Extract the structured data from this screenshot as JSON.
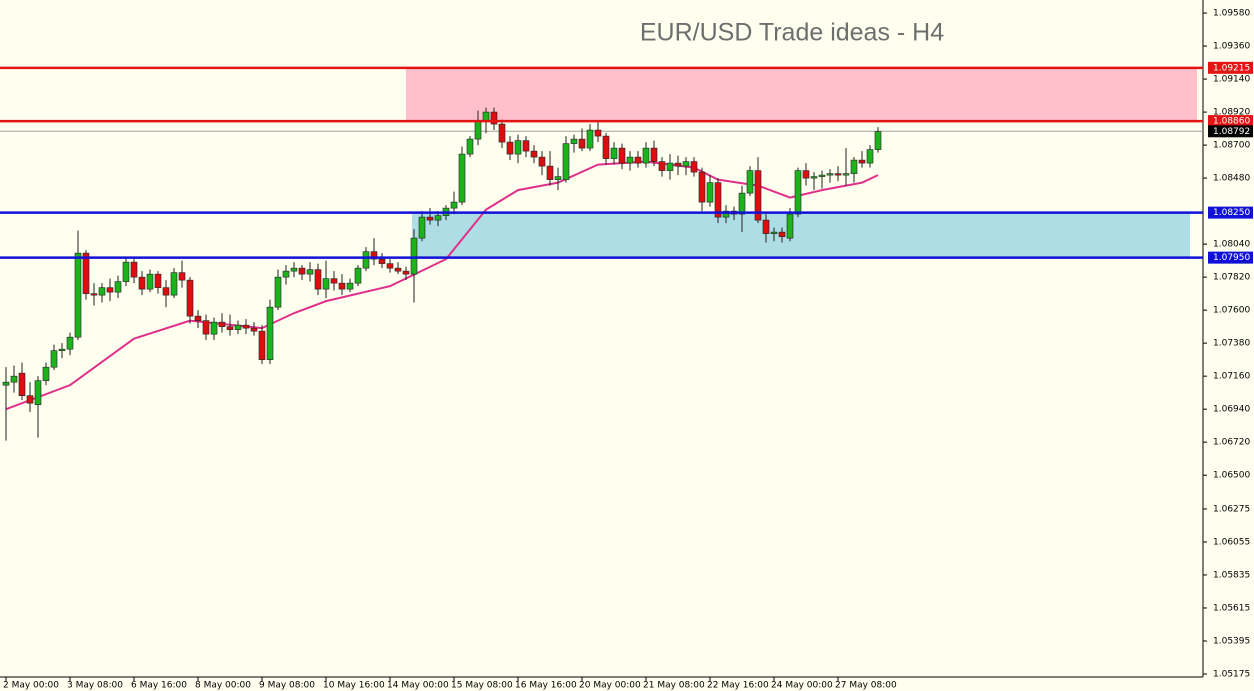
{
  "chart_data": {
    "type": "candlestick",
    "title": "EUR/USD Trade ideas - H4",
    "categories": [
      "2 May 00:00",
      null,
      null,
      null,
      null,
      null,
      null,
      null,
      "3 May 08:00",
      null,
      null,
      null,
      null,
      null,
      null,
      null,
      "6 May 16:00",
      null,
      null,
      null,
      null,
      null,
      null,
      null,
      "8 May 00:00",
      null,
      null,
      null,
      null,
      null,
      null,
      null,
      "9 May 08:00",
      null,
      null,
      null,
      null,
      null,
      null,
      null,
      "10 May 16:00",
      null,
      null,
      null,
      null,
      null,
      null,
      null,
      "14 May 00:00",
      null,
      null,
      null,
      null,
      null,
      null,
      null,
      "15 May 08:00",
      null,
      null,
      null,
      null,
      null,
      null,
      null,
      "16 May 16:00",
      null,
      null,
      null,
      null,
      null,
      null,
      null,
      "20 May 00:00",
      null,
      null,
      null,
      null,
      null,
      null,
      null,
      "21 May 08:00",
      null,
      null,
      null,
      null,
      null,
      null,
      null,
      "22 May 16:00",
      null,
      null,
      null,
      null,
      null,
      null,
      null,
      "24 May 00:00",
      null,
      null,
      null,
      null,
      null,
      null,
      null,
      "27 May 08:00",
      null,
      null,
      null,
      null,
      null
    ],
    "open": [
      1.071,
      1.0712,
      1.0718,
      1.0703,
      1.0697,
      1.0713,
      1.0722,
      1.0733,
      1.0734,
      1.0742,
      1.0798,
      1.0771,
      1.077,
      1.0775,
      1.0772,
      1.0779,
      1.0792,
      1.0782,
      1.0774,
      1.0784,
      1.0775,
      1.077,
      1.0785,
      1.078,
      1.0756,
      1.0753,
      1.0744,
      1.0752,
      1.0749,
      1.0747,
      1.075,
      1.0748,
      1.0746,
      1.0727,
      1.0762,
      1.0782,
      1.0786,
      1.0788,
      1.0784,
      1.0787,
      1.0774,
      1.0781,
      1.0778,
      1.0774,
      1.0778,
      1.0788,
      1.0799,
      1.0794,
      1.0791,
      1.0788,
      1.0786,
      1.0784,
      1.0808,
      1.0822,
      1.082,
      1.0823,
      1.0828,
      1.0832,
      1.0864,
      1.0874,
      1.0886,
      1.0892,
      1.0884,
      1.0872,
      1.0864,
      1.0873,
      1.0866,
      1.0862,
      1.0856,
      1.0847,
      1.0847,
      1.0871,
      1.0874,
      1.0868,
      1.088,
      1.0876,
      1.0861,
      1.0868,
      1.0858,
      1.0862,
      1.0858,
      1.0868,
      1.0859,
      1.0853,
      1.0858,
      1.0856,
      1.0859,
      1.0852,
      1.0832,
      1.0845,
      1.0822,
      1.0826,
      1.0824,
      1.0838,
      1.0853,
      1.082,
      1.0811,
      1.0812,
      1.0808,
      1.0824,
      1.0853,
      1.0848,
      1.0849,
      1.085,
      1.0851,
      1.085,
      1.0851,
      1.086,
      1.0858,
      1.0867
    ],
    "high": [
      1.0722,
      1.0723,
      1.0725,
      1.0712,
      1.0716,
      1.0725,
      1.0737,
      1.0738,
      1.0745,
      1.0813,
      1.08,
      1.0778,
      1.0778,
      1.0781,
      1.0783,
      1.0795,
      1.0794,
      1.0786,
      1.0787,
      1.0786,
      1.078,
      1.0788,
      1.0793,
      1.0782,
      1.076,
      1.0757,
      1.0755,
      1.0758,
      1.0757,
      1.0753,
      1.0754,
      1.0752,
      1.075,
      1.0767,
      1.0787,
      1.079,
      1.0792,
      1.079,
      1.0792,
      1.0791,
      1.0793,
      1.0786,
      1.0784,
      1.0781,
      1.079,
      1.0802,
      1.0808,
      1.0798,
      1.0794,
      1.0792,
      1.0789,
      1.0814,
      1.0826,
      1.0828,
      1.0826,
      1.083,
      1.0839,
      1.0869,
      1.0876,
      1.0893,
      1.0895,
      1.0895,
      1.0887,
      1.0876,
      1.0877,
      1.0876,
      1.087,
      1.0866,
      1.0866,
      1.0855,
      1.0876,
      1.0877,
      1.0881,
      1.0884,
      1.0886,
      1.0878,
      1.0872,
      1.0871,
      1.0866,
      1.0866,
      1.0872,
      1.0873,
      1.0862,
      1.0864,
      1.0863,
      1.0862,
      1.0862,
      1.0855,
      1.085,
      1.0848,
      1.083,
      1.0829,
      1.0843,
      1.0856,
      1.0862,
      1.0824,
      1.0815,
      1.0815,
      1.0828,
      1.0855,
      1.0858,
      1.0852,
      1.0853,
      1.0854,
      1.0856,
      1.0868,
      1.0862,
      1.0866,
      1.087,
      1.0882
    ],
    "low": [
      1.0673,
      1.0705,
      1.07,
      1.0692,
      1.0675,
      1.071,
      1.072,
      1.0728,
      1.073,
      1.074,
      1.0767,
      1.0763,
      1.0765,
      1.0766,
      1.0768,
      1.0776,
      1.0778,
      1.077,
      1.0772,
      1.0771,
      1.0762,
      1.0768,
      1.0775,
      1.0751,
      1.0748,
      1.074,
      1.074,
      1.0745,
      1.0743,
      1.0744,
      1.0744,
      1.0743,
      1.0724,
      1.0724,
      1.076,
      1.0777,
      1.0782,
      1.078,
      1.0779,
      1.077,
      1.0768,
      1.0773,
      1.077,
      1.0772,
      1.0776,
      1.0786,
      1.079,
      1.0788,
      1.0785,
      1.0784,
      1.078,
      1.0765,
      1.0806,
      1.0817,
      1.0816,
      1.082,
      1.0824,
      1.083,
      1.0862,
      1.087,
      1.0878,
      1.088,
      1.0868,
      1.086,
      1.0858,
      1.0862,
      1.0858,
      1.085,
      1.0843,
      1.084,
      1.0845,
      1.0865,
      1.0866,
      1.0866,
      1.0872,
      1.0857,
      1.0857,
      1.0854,
      1.0853,
      1.0855,
      1.0855,
      1.0856,
      1.0849,
      1.0847,
      1.085,
      1.085,
      1.0849,
      1.0826,
      1.0829,
      1.0818,
      1.0818,
      1.082,
      1.0812,
      1.0836,
      1.0818,
      1.0805,
      1.0806,
      1.0805,
      1.0806,
      1.0822,
      1.0843,
      1.084,
      1.0841,
      1.0845,
      1.0846,
      1.0843,
      1.0845,
      1.0855,
      1.0855,
      1.0865
    ],
    "close": [
      1.0712,
      1.0716,
      1.0703,
      1.0698,
      1.0713,
      1.0722,
      1.0733,
      1.0734,
      1.0742,
      1.0798,
      1.0771,
      1.077,
      1.0775,
      1.0772,
      1.0779,
      1.0792,
      1.0782,
      1.0774,
      1.0784,
      1.0775,
      1.077,
      1.0785,
      1.078,
      1.0756,
      1.0753,
      1.0744,
      1.0752,
      1.0749,
      1.0747,
      1.075,
      1.0748,
      1.0746,
      1.0727,
      1.0762,
      1.0782,
      1.0786,
      1.0788,
      1.0784,
      1.0787,
      1.0774,
      1.0781,
      1.0778,
      1.0774,
      1.0778,
      1.0788,
      1.0799,
      1.0794,
      1.0791,
      1.0788,
      1.0786,
      1.0784,
      1.0808,
      1.0822,
      1.082,
      1.0823,
      1.0828,
      1.0832,
      1.0864,
      1.0874,
      1.0886,
      1.0892,
      1.0884,
      1.0872,
      1.0864,
      1.0873,
      1.0866,
      1.0862,
      1.0856,
      1.0847,
      1.0849,
      1.0871,
      1.0874,
      1.0868,
      1.088,
      1.0876,
      1.0861,
      1.0868,
      1.0858,
      1.0862,
      1.0858,
      1.0868,
      1.0859,
      1.0853,
      1.0858,
      1.0856,
      1.0859,
      1.0852,
      1.0832,
      1.0845,
      1.0822,
      1.0826,
      1.0824,
      1.0838,
      1.0853,
      1.082,
      1.0811,
      1.0812,
      1.0809,
      1.0824,
      1.0853,
      1.0848,
      1.0849,
      1.085,
      1.0851,
      1.085,
      1.0851,
      1.086,
      1.0858,
      1.0867,
      1.0879
    ],
    "up_color": "#1db31d",
    "down_color": "#d81010",
    "moving_average": {
      "color": "#e0308a",
      "x": [
        0,
        8,
        16,
        23,
        32,
        36,
        40,
        48,
        55,
        60,
        64,
        69,
        74,
        80,
        86,
        89,
        94,
        98,
        102,
        107,
        109
      ],
      "values": [
        1.0694,
        1.071,
        1.0741,
        1.0753,
        1.0748,
        1.0758,
        1.0766,
        1.0776,
        1.0794,
        1.0827,
        1.084,
        1.0845,
        1.0857,
        1.0859,
        1.0855,
        1.0847,
        1.0843,
        1.0835,
        1.084,
        1.0845,
        1.085
      ]
    },
    "zones": [
      {
        "fill": "#ffc0cb",
        "line_color": "#e41414",
        "bounds": [
          {
            "value": 1.09215,
            "label": "1.09215"
          },
          {
            "value": 1.0886,
            "label": "1.08860"
          }
        ]
      },
      {
        "fill": "#aedde6",
        "line_color": "#1010d8",
        "bounds": [
          {
            "value": 1.0825,
            "label": "1.08250"
          },
          {
            "value": 1.0795,
            "label": "1.07950"
          }
        ]
      }
    ],
    "current_price": {
      "value": 1.08792,
      "label": "1.08792"
    },
    "ylim": [
      1.05155,
      1.09667
    ],
    "yticks": [
      {
        "value": 1.0958,
        "label": "1.09580"
      },
      {
        "value": 1.0936,
        "label": "1.09360"
      },
      {
        "value": 1.0914,
        "label": "1.09140"
      },
      {
        "value": 1.0892,
        "label": "1.08920"
      },
      {
        "value": 1.087,
        "label": "1.08700"
      },
      {
        "value": 1.0848,
        "label": "1.08480"
      },
      {
        "value": 1.0804,
        "label": "1.08040"
      },
      {
        "value": 1.0782,
        "label": "1.07820"
      },
      {
        "value": 1.076,
        "label": "1.07600"
      },
      {
        "value": 1.0738,
        "label": "1.07380"
      },
      {
        "value": 1.0716,
        "label": "1.07160"
      },
      {
        "value": 1.0694,
        "label": "1.06940"
      },
      {
        "value": 1.0672,
        "label": "1.06720"
      },
      {
        "value": 1.065,
        "label": "1.06500"
      },
      {
        "value": 1.06275,
        "label": "1.06275"
      },
      {
        "value": 1.06055,
        "label": "1.06055"
      },
      {
        "value": 1.05835,
        "label": "1.05835"
      },
      {
        "value": 1.05615,
        "label": "1.05615"
      },
      {
        "value": 1.05395,
        "label": "1.05395"
      },
      {
        "value": 1.05175,
        "label": "1.05175"
      }
    ]
  }
}
